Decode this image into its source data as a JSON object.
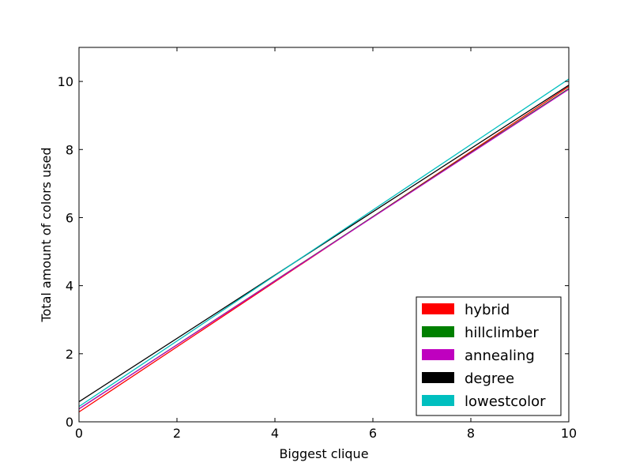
{
  "chart_data": {
    "type": "line",
    "title": "",
    "xlabel": "Biggest clique",
    "ylabel": "Total amount of colors used",
    "xlim": [
      0,
      10
    ],
    "ylim": [
      0,
      11
    ],
    "xticks": [
      0,
      2,
      4,
      6,
      8,
      10
    ],
    "yticks": [
      0,
      2,
      4,
      6,
      8,
      10
    ],
    "grid": false,
    "legend_position": "lower-right",
    "series": [
      {
        "name": "hybrid",
        "color": "#ff0000",
        "x": [
          0,
          10
        ],
        "y": [
          0.29,
          9.85
        ]
      },
      {
        "name": "hillclimber",
        "color": "#008000",
        "x": [
          0,
          10
        ],
        "y": [
          0.38,
          9.79
        ]
      },
      {
        "name": "annealing",
        "color": "#bf00bf",
        "x": [
          0,
          10
        ],
        "y": [
          0.38,
          9.77
        ]
      },
      {
        "name": "degree",
        "color": "#000000",
        "x": [
          0,
          10
        ],
        "y": [
          0.59,
          9.89
        ]
      },
      {
        "name": "lowestcolor",
        "color": "#00bfbf",
        "x": [
          0,
          10
        ],
        "y": [
          0.45,
          10.07
        ]
      }
    ]
  }
}
